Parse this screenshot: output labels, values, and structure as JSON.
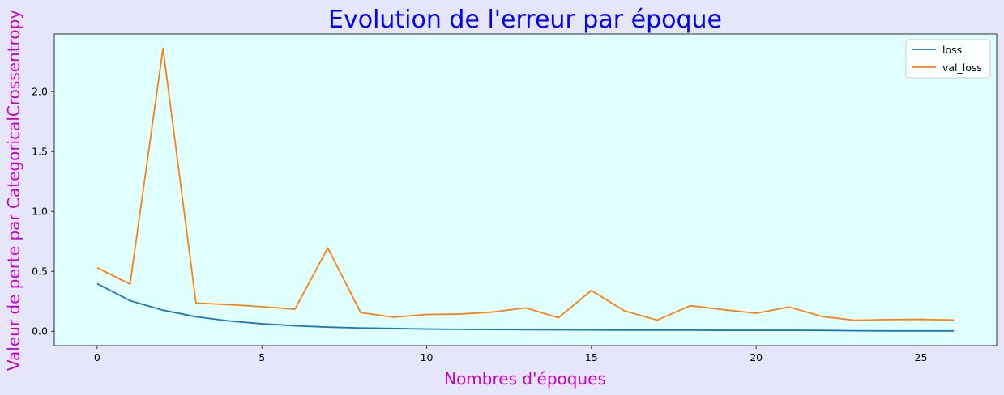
{
  "chart_data": {
    "type": "line",
    "title": "Evolution de l'erreur par époque",
    "xlabel": "Nombres d'époques",
    "ylabel": "Valeur de perte par CategoricalCrossentropy",
    "xlim": [
      -1.3,
      27.3
    ],
    "ylim": [
      -0.12,
      2.48
    ],
    "xticks": [
      0,
      5,
      10,
      15,
      20,
      25
    ],
    "yticks": [
      0.0,
      0.5,
      1.0,
      1.5,
      2.0
    ],
    "x": [
      0,
      1,
      2,
      3,
      4,
      5,
      6,
      7,
      8,
      9,
      10,
      11,
      12,
      13,
      14,
      15,
      16,
      17,
      18,
      19,
      20,
      21,
      22,
      23,
      24,
      25,
      26
    ],
    "series": [
      {
        "name": "loss",
        "color": "#1f77b4",
        "values": [
          0.397,
          0.255,
          0.175,
          0.121,
          0.086,
          0.062,
          0.046,
          0.034,
          0.027,
          0.023,
          0.018,
          0.016,
          0.014,
          0.013,
          0.012,
          0.011,
          0.009,
          0.009,
          0.009,
          0.008,
          0.008,
          0.008,
          0.007,
          0.004,
          0.003,
          0.003,
          0.003
        ]
      },
      {
        "name": "val_loss",
        "color": "#ff7f0e",
        "values": [
          0.53,
          0.393,
          2.36,
          0.235,
          0.222,
          0.205,
          0.183,
          0.695,
          0.155,
          0.117,
          0.14,
          0.143,
          0.16,
          0.195,
          0.113,
          0.34,
          0.17,
          0.093,
          0.213,
          0.18,
          0.15,
          0.202,
          0.123,
          0.091,
          0.097,
          0.099,
          0.093
        ]
      }
    ],
    "legend_position": "upper right",
    "grid": false,
    "background_color": "#e0ffff",
    "figure_background": "#e6e6fa",
    "title_color": "#0000ff",
    "label_color": "#c700c7"
  }
}
